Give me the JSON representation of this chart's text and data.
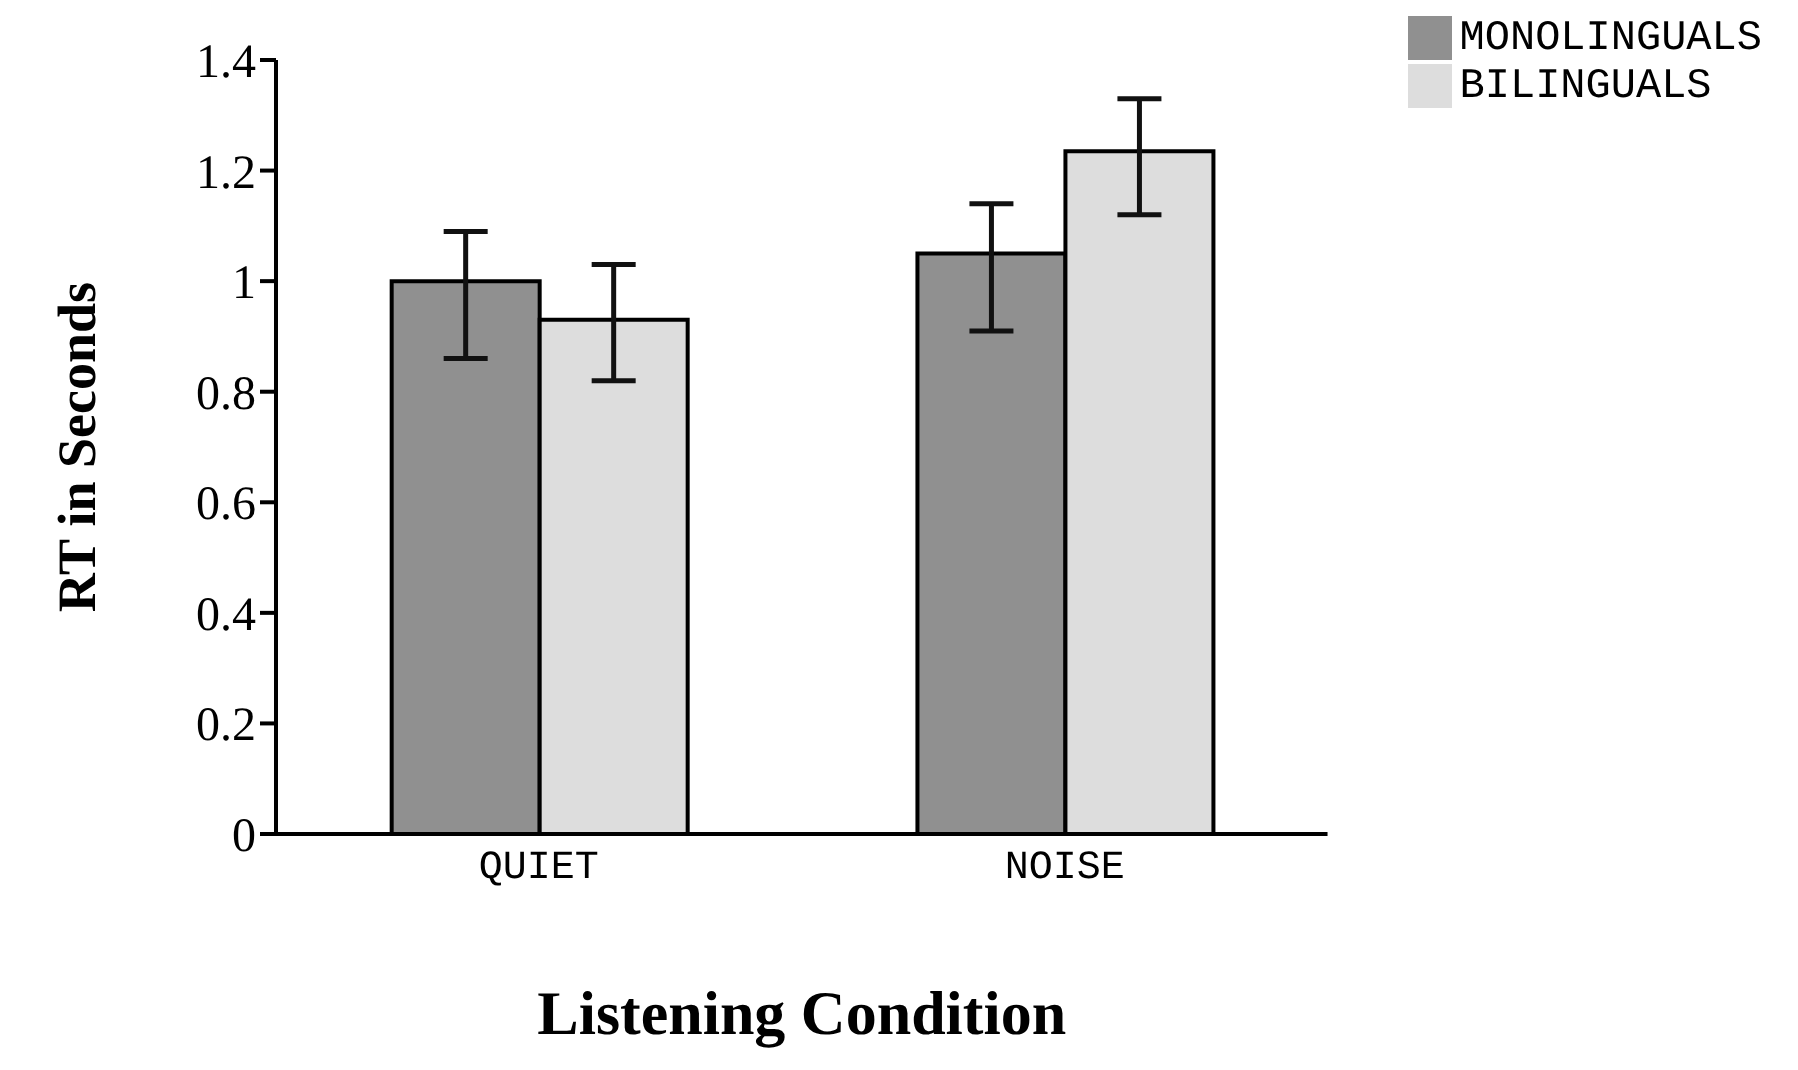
{
  "chart_data": {
    "type": "bar",
    "xlabel": "Listening Condition",
    "ylabel": "RT in Seconds",
    "categories": [
      "QUIET",
      "NOISE"
    ],
    "series": [
      {
        "name": "MONOLINGUALS",
        "color": "#909090",
        "values": [
          1.0,
          1.05
        ],
        "errors": [
          [
            0.86,
            1.09
          ],
          [
            0.91,
            1.14
          ]
        ]
      },
      {
        "name": "BILINGUALS",
        "color": "#dddddd",
        "values": [
          0.93,
          1.235
        ],
        "errors": [
          [
            0.82,
            1.03
          ],
          [
            1.12,
            1.33
          ]
        ]
      }
    ],
    "ylim": [
      0,
      1.4
    ],
    "yticks": [
      0,
      0.2,
      0.4,
      0.6,
      0.8,
      1,
      1.2,
      1.4
    ],
    "legend": "top right",
    "grid": false
  }
}
